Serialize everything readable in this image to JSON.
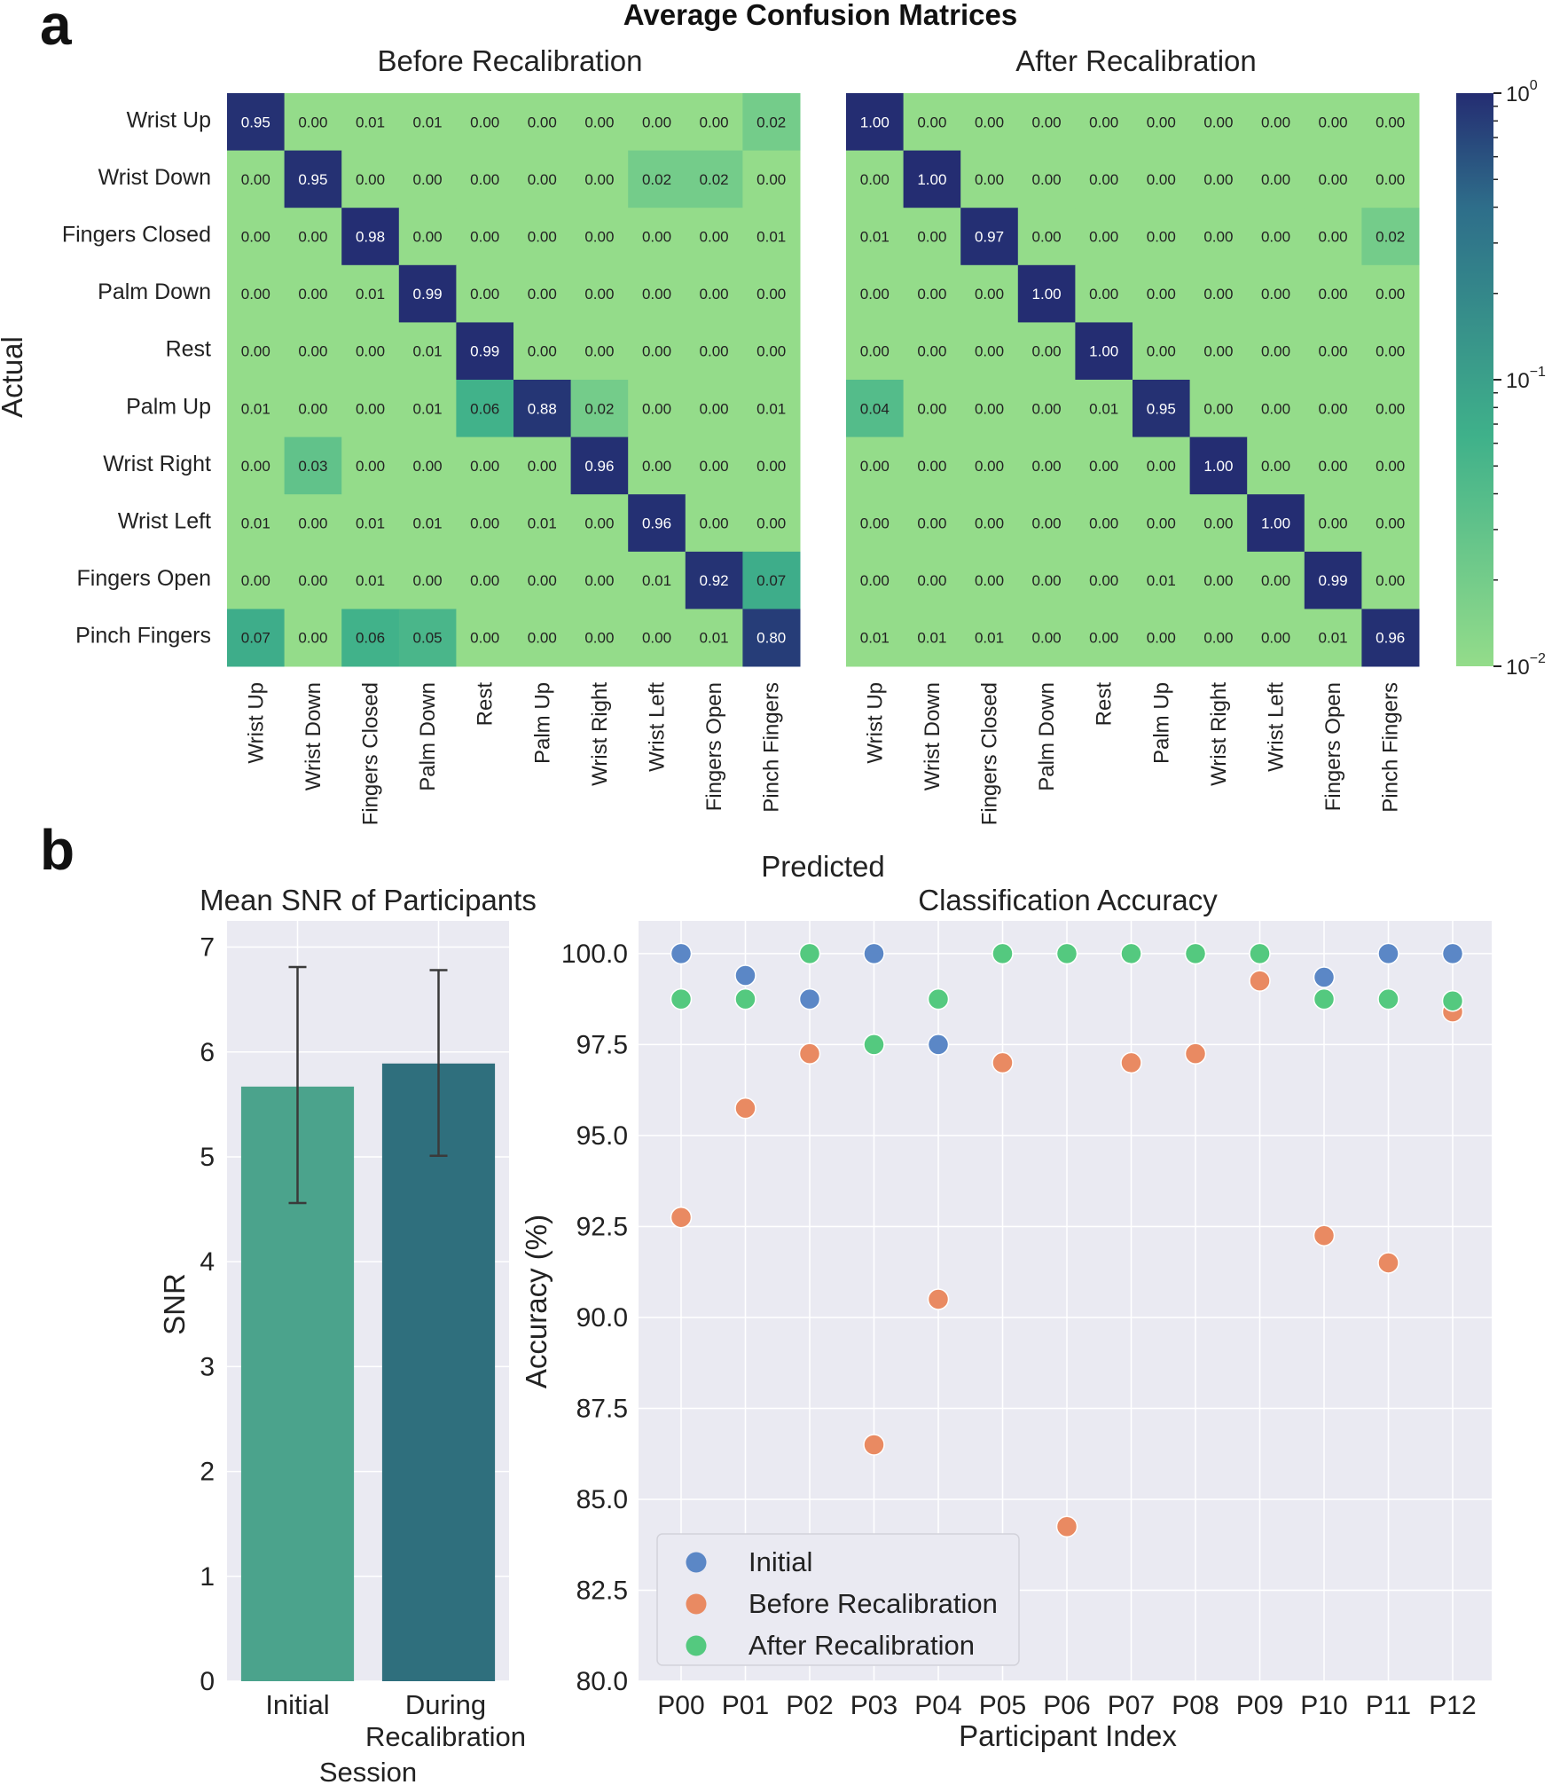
{
  "panel_labels": {
    "a": "a",
    "b": "b"
  },
  "colors": {
    "cmap_low": "#94dc8a",
    "cmap_mid": "#3fb18a",
    "cmap_mid2": "#2e6e8a",
    "cmap_high": "#242d72",
    "text_light": "#ffffff",
    "text_dark": "#222222",
    "plot_bg": "#eaeaf2",
    "grid": "#ffffff",
    "bar_initial": "#4ba38c",
    "bar_during": "#2f6f7d",
    "initial": "#5b87c6",
    "before": "#e98a62",
    "after": "#54c97f"
  },
  "chart_data": [
    {
      "type": "heatmap",
      "suptitle": "Average Confusion Matrices",
      "title": "Before Recalibration",
      "ylabel": "Actual",
      "xlabel": "Predicted",
      "labels": [
        "Wrist Up",
        "Wrist Down",
        "Fingers Closed",
        "Palm Down",
        "Rest",
        "Palm Up",
        "Wrist Right",
        "Wrist Left",
        "Fingers Open",
        "Pinch Fingers"
      ],
      "matrix": [
        [
          "0.95",
          "0.00",
          "0.01",
          "0.01",
          "0.00",
          "0.00",
          "0.00",
          "0.00",
          "0.00",
          "0.02"
        ],
        [
          "0.00",
          "0.95",
          "0.00",
          "0.00",
          "0.00",
          "0.00",
          "0.00",
          "0.02",
          "0.02",
          "0.00"
        ],
        [
          "0.00",
          "0.00",
          "0.98",
          "0.00",
          "0.00",
          "0.00",
          "0.00",
          "0.00",
          "0.00",
          "0.01"
        ],
        [
          "0.00",
          "0.00",
          "0.01",
          "0.99",
          "0.00",
          "0.00",
          "0.00",
          "0.00",
          "0.00",
          "0.00"
        ],
        [
          "0.00",
          "0.00",
          "0.00",
          "0.01",
          "0.99",
          "0.00",
          "0.00",
          "0.00",
          "0.00",
          "0.00"
        ],
        [
          "0.01",
          "0.00",
          "0.00",
          "0.01",
          "0.06",
          "0.88",
          "0.02",
          "0.00",
          "0.00",
          "0.01"
        ],
        [
          "0.00",
          "0.03",
          "0.00",
          "0.00",
          "0.00",
          "0.00",
          "0.96",
          "0.00",
          "0.00",
          "0.00"
        ],
        [
          "0.01",
          "0.00",
          "0.01",
          "0.01",
          "0.00",
          "0.01",
          "0.00",
          "0.96",
          "0.00",
          "0.00"
        ],
        [
          "0.00",
          "0.00",
          "0.01",
          "0.00",
          "0.00",
          "0.00",
          "0.00",
          "0.01",
          "0.92",
          "0.07"
        ],
        [
          "0.07",
          "0.00",
          "0.06",
          "0.05",
          "0.00",
          "0.00",
          "0.00",
          "0.00",
          "0.01",
          "0.80"
        ]
      ]
    },
    {
      "type": "heatmap",
      "title": "After Recalibration",
      "labels": [
        "Wrist Up",
        "Wrist Down",
        "Fingers Closed",
        "Palm Down",
        "Rest",
        "Palm Up",
        "Wrist Right",
        "Wrist Left",
        "Fingers Open",
        "Pinch Fingers"
      ],
      "matrix": [
        [
          "1.00",
          "0.00",
          "0.00",
          "0.00",
          "0.00",
          "0.00",
          "0.00",
          "0.00",
          "0.00",
          "0.00"
        ],
        [
          "0.00",
          "1.00",
          "0.00",
          "0.00",
          "0.00",
          "0.00",
          "0.00",
          "0.00",
          "0.00",
          "0.00"
        ],
        [
          "0.01",
          "0.00",
          "0.97",
          "0.00",
          "0.00",
          "0.00",
          "0.00",
          "0.00",
          "0.00",
          "0.02"
        ],
        [
          "0.00",
          "0.00",
          "0.00",
          "1.00",
          "0.00",
          "0.00",
          "0.00",
          "0.00",
          "0.00",
          "0.00"
        ],
        [
          "0.00",
          "0.00",
          "0.00",
          "0.00",
          "1.00",
          "0.00",
          "0.00",
          "0.00",
          "0.00",
          "0.00"
        ],
        [
          "0.04",
          "0.00",
          "0.00",
          "0.00",
          "0.01",
          "0.95",
          "0.00",
          "0.00",
          "0.00",
          "0.00"
        ],
        [
          "0.00",
          "0.00",
          "0.00",
          "0.00",
          "0.00",
          "0.00",
          "1.00",
          "0.00",
          "0.00",
          "0.00"
        ],
        [
          "0.00",
          "0.00",
          "0.00",
          "0.00",
          "0.00",
          "0.00",
          "0.00",
          "1.00",
          "0.00",
          "0.00"
        ],
        [
          "0.00",
          "0.00",
          "0.00",
          "0.00",
          "0.00",
          "0.01",
          "0.00",
          "0.00",
          "0.99",
          "0.00"
        ],
        [
          "0.01",
          "0.01",
          "0.01",
          "0.00",
          "0.00",
          "0.00",
          "0.00",
          "0.00",
          "0.01",
          "0.96"
        ]
      ],
      "colorbar": {
        "scale": "log",
        "ticks": [
          {
            "base": "10",
            "exp": "0"
          },
          {
            "base": "10",
            "exp": "−1"
          },
          {
            "base": "10",
            "exp": "−2"
          }
        ]
      }
    },
    {
      "type": "bar",
      "title": "Mean SNR of Participants",
      "xlabel": "Session",
      "ylabel": "SNR",
      "categories": [
        [
          "Initial"
        ],
        [
          "During",
          "Recalibration"
        ]
      ],
      "values": [
        5.67,
        5.89
      ],
      "error_low": [
        4.56,
        5.01
      ],
      "error_high": [
        6.81,
        6.78
      ],
      "ylim": [
        0,
        7.25
      ],
      "yticks": [
        "0",
        "1",
        "2",
        "3",
        "4",
        "5",
        "6",
        "7"
      ]
    },
    {
      "type": "scatter",
      "title": "Classification Accuracy",
      "xlabel": "Participant Index",
      "ylabel": "Accuracy (%)",
      "categories": [
        "P00",
        "P01",
        "P02",
        "P03",
        "P04",
        "P05",
        "P06",
        "P07",
        "P08",
        "P09",
        "P10",
        "P11",
        "P12"
      ],
      "ylim": [
        80.0,
        100.9
      ],
      "yticks": [
        "80.0",
        "82.5",
        "85.0",
        "87.5",
        "90.0",
        "92.5",
        "95.0",
        "97.5",
        "100.0"
      ],
      "series": [
        {
          "name": "Initial",
          "color": "#5b87c6",
          "values": [
            100.0,
            99.4,
            98.75,
            100.0,
            97.5,
            100.0,
            100.0,
            100.0,
            100.0,
            100.0,
            99.35,
            100.0,
            100.0
          ]
        },
        {
          "name": "Before Recalibration",
          "color": "#e98a62",
          "values": [
            92.75,
            95.75,
            97.25,
            86.5,
            90.5,
            97.0,
            84.25,
            97.0,
            97.25,
            99.25,
            92.25,
            91.5,
            98.4
          ]
        },
        {
          "name": "After Recalibration",
          "color": "#54c97f",
          "values": [
            98.75,
            98.75,
            100.0,
            97.5,
            98.75,
            100.0,
            100.0,
            100.0,
            100.0,
            100.0,
            98.75,
            98.75,
            98.7
          ]
        }
      ],
      "legend": {
        "position": "bottom-left",
        "entries": [
          "Initial",
          "Before Recalibration",
          "After Recalibration"
        ]
      }
    }
  ]
}
